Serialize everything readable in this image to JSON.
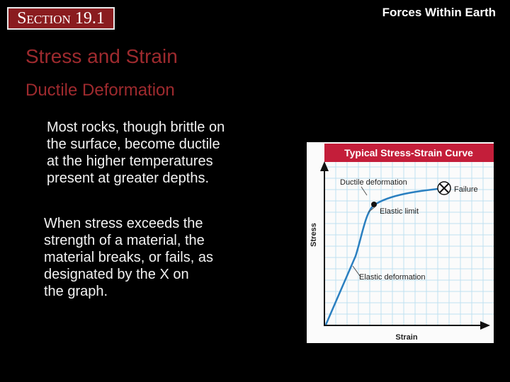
{
  "header": {
    "section": "Section 19.1",
    "topic": "Forces Within Earth"
  },
  "title": "Stress and Strain",
  "subtitle": "Ductile Deformation",
  "paragraphs": [
    {
      "lines": [
        "Most rocks, though brittle on",
        "the surface, become ductile",
        "at the higher temperatures",
        "present at greater depths."
      ]
    },
    {
      "lines": [
        "When stress exceeds the",
        "strength of a material, the",
        "material breaks, or fails, as",
        "designated by the X on",
        "the graph."
      ]
    }
  ],
  "figure": {
    "title": "Typical Stress-Strain Curve",
    "labels": {
      "ductile": "Ductile deformation",
      "failure": "Failure",
      "elastic_limit": "Elastic limit",
      "elastic": "Elastic deformation"
    },
    "y_axis": "Stress",
    "x_axis": "Strain"
  }
}
